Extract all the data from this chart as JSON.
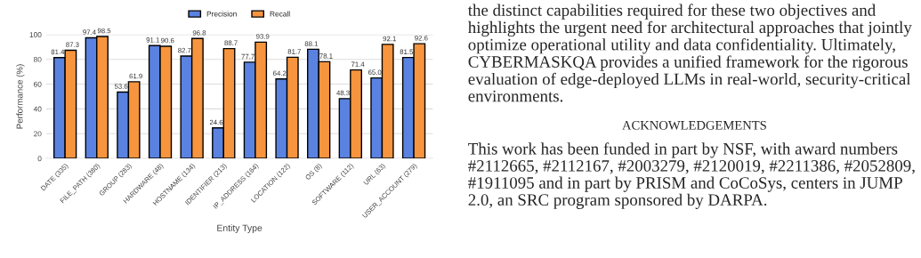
{
  "chart_data": {
    "type": "bar",
    "xlabel": "Entity Type",
    "ylabel": "Performance (%)",
    "categories": [
      "DATE (335)",
      "FILE_PATH (380)",
      "GROUP (283)",
      "HARDWARE (48)",
      "HOSTNAME (134)",
      "IDENTIFIER (213)",
      "IP_ADDRESS (164)",
      "LOCATION (122)",
      "OS (8)",
      "SOFTWARE (112)",
      "URL (63)",
      "USER_ACCOUNT (279)"
    ],
    "series": [
      {
        "name": "Precision",
        "color": "#5a82e0",
        "values": [
          81.4,
          97.4,
          53.6,
          91.1,
          82.7,
          24.6,
          77.7,
          64.2,
          88.1,
          48.3,
          65.0,
          81.5
        ],
        "value_labels": [
          "81.4",
          "97.4",
          "53.6",
          "91.1",
          "82.7",
          "24.6",
          "77.7",
          "64.2",
          "88.1",
          "48.3",
          "65.0",
          "81.5"
        ]
      },
      {
        "name": "Recall",
        "color": "#f7953e",
        "values": [
          87.3,
          98.5,
          61.9,
          90.6,
          96.8,
          88.7,
          93.9,
          81.7,
          78.1,
          71.4,
          92.1,
          92.6
        ],
        "value_labels": [
          "87.3",
          "98.5",
          "61.9",
          "90.6",
          "96.8",
          "88.7",
          "93.9",
          "81.7",
          "78.1",
          "71.4",
          "92.1",
          "92.6"
        ]
      }
    ],
    "ylim": [
      0,
      100
    ],
    "yticks": [
      0,
      20,
      40,
      60,
      80,
      100
    ],
    "grid": "y",
    "legend": "top",
    "annotations": [
      "the distinct capabilities required for these two objectives and highlights the urgent need for architectural approaches that jointly optimize operational utility and data confidentiality. Ultimately, CYBERMASKQA provides a unified framework for the rigorous evaluation of edge-deployed LLMs in real-world, security-critical environments.",
      "ACKNOWLEDGEMENTS",
      "This work has been funded in part by NSF, with award numbers #2112665, #2112167, #2003279, #2120019, #2211386, #2052809, #1911095 and in part by PRISM and CoCoSys, centers in JUMP 2.0, an SRC program sponsored by DARPA."
    ]
  }
}
